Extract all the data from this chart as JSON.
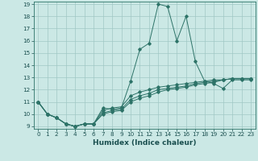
{
  "title": "",
  "xlabel": "Humidex (Indice chaleur)",
  "bg_color": "#cbe8e5",
  "grid_color": "#a0c8c4",
  "line_color": "#2d7368",
  "xlim": [
    -0.5,
    23.5
  ],
  "ylim": [
    8.8,
    19.2
  ],
  "xticks": [
    0,
    1,
    2,
    3,
    4,
    5,
    6,
    7,
    8,
    9,
    10,
    11,
    12,
    13,
    14,
    15,
    16,
    17,
    18,
    19,
    20,
    21,
    22,
    23
  ],
  "yticks": [
    9,
    10,
    11,
    12,
    13,
    14,
    15,
    16,
    17,
    18,
    19
  ],
  "series": [
    {
      "x": [
        0,
        1,
        2,
        3,
        4,
        5,
        6,
        7,
        8,
        9,
        10,
        11,
        12,
        13,
        14,
        15,
        16,
        17,
        18,
        19,
        20,
        21,
        22,
        23
      ],
      "y": [
        11.0,
        10.0,
        9.7,
        9.2,
        9.0,
        9.2,
        9.2,
        10.5,
        10.4,
        10.5,
        12.7,
        15.3,
        15.8,
        19.0,
        18.8,
        16.0,
        18.0,
        14.3,
        12.7,
        12.5,
        12.1,
        12.8,
        12.8,
        12.8
      ]
    },
    {
      "x": [
        0,
        1,
        2,
        3,
        4,
        5,
        6,
        7,
        8,
        9,
        10,
        11,
        12,
        13,
        14,
        15,
        16,
        17,
        18,
        19,
        20,
        21,
        22,
        23
      ],
      "y": [
        11.0,
        10.0,
        9.7,
        9.2,
        9.0,
        9.2,
        9.2,
        10.0,
        10.2,
        10.3,
        11.0,
        11.3,
        11.5,
        11.8,
        12.0,
        12.1,
        12.2,
        12.4,
        12.5,
        12.6,
        12.8,
        12.9,
        12.9,
        12.9
      ]
    },
    {
      "x": [
        0,
        1,
        2,
        3,
        4,
        5,
        6,
        7,
        8,
        9,
        10,
        11,
        12,
        13,
        14,
        15,
        16,
        17,
        18,
        19,
        20,
        21,
        22,
        23
      ],
      "y": [
        11.0,
        10.0,
        9.7,
        9.2,
        9.0,
        9.2,
        9.2,
        10.1,
        10.3,
        10.4,
        11.2,
        11.5,
        11.7,
        12.0,
        12.1,
        12.2,
        12.3,
        12.5,
        12.6,
        12.7,
        12.8,
        12.9,
        12.9,
        12.9
      ]
    },
    {
      "x": [
        0,
        1,
        2,
        3,
        4,
        5,
        6,
        7,
        8,
        9,
        10,
        11,
        12,
        13,
        14,
        15,
        16,
        17,
        18,
        19,
        20,
        21,
        22,
        23
      ],
      "y": [
        11.0,
        10.0,
        9.7,
        9.2,
        9.0,
        9.2,
        9.2,
        10.3,
        10.5,
        10.6,
        11.5,
        11.8,
        12.0,
        12.2,
        12.3,
        12.4,
        12.5,
        12.6,
        12.7,
        12.8,
        12.8,
        12.9,
        12.9,
        12.9
      ]
    }
  ]
}
